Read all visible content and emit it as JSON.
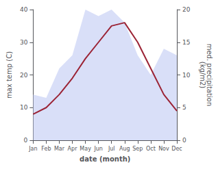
{
  "chart_data": {
    "type": "line",
    "categories": [
      "Jan",
      "Feb",
      "Mar",
      "Apr",
      "May",
      "Jun",
      "Jul",
      "Aug",
      "Sep",
      "Oct",
      "Nov",
      "Dec"
    ],
    "series": [
      {
        "type": "area",
        "axis": "y2",
        "color": "#c5cef5",
        "values": [
          7,
          6.5,
          11,
          13,
          20,
          19,
          20,
          18,
          13,
          10,
          14,
          13
        ]
      },
      {
        "type": "line",
        "color": "#9b2335",
        "values": [
          8,
          10,
          14,
          19,
          25,
          30,
          35,
          36,
          30,
          22,
          14,
          9
        ]
      }
    ],
    "x_label": "date (month)",
    "y_label": "max temp (C)",
    "y2_label": "med. precipitation\n(kg/m2)",
    "ylim": [
      0,
      40
    ],
    "yticks": [
      0,
      10,
      20,
      30,
      40
    ],
    "y2lim": [
      0,
      20
    ],
    "y2ticks": [
      0,
      5,
      10,
      15,
      20
    ],
    "grid": false
  }
}
